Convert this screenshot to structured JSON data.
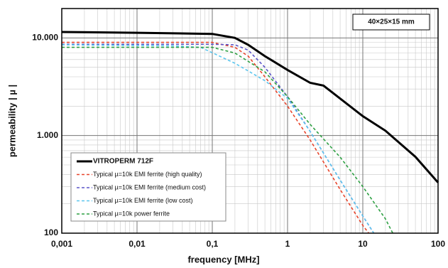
{
  "chart_data": {
    "type": "line",
    "xlabel": "frequency [MHz]",
    "ylabel": "permeability | µ |",
    "annotation": "40×25×15 mm",
    "xscale": "log",
    "yscale": "log",
    "xlim": [
      0.001,
      100
    ],
    "ylim": [
      100,
      20000
    ],
    "xticks": [
      {
        "value": 0.001,
        "label": "0,001"
      },
      {
        "value": 0.01,
        "label": "0,01"
      },
      {
        "value": 0.1,
        "label": "0,1"
      },
      1,
      10,
      100
    ],
    "yticks": [
      100,
      {
        "value": 1000,
        "label": "1.000"
      },
      {
        "value": 10000,
        "label": "10.000"
      }
    ],
    "grid": true,
    "minor_grid": true,
    "legend": "lower left",
    "series": [
      {
        "name": "VITROPERM 712F",
        "color": "#000000",
        "style": "solid",
        "x": [
          0.001,
          0.01,
          0.1,
          0.2,
          0.3,
          0.5,
          1,
          2,
          3,
          10,
          20,
          50,
          100
        ],
        "values": [
          11500,
          11300,
          11000,
          10000,
          8500,
          6500,
          4700,
          3470,
          3250,
          1580,
          1120,
          605,
          330
        ]
      },
      {
        "name": "Typical µ=10k EMI ferrite (high quality)",
        "color": "#e8452c",
        "style": "dashed",
        "x": [
          0.001,
          0.01,
          0.1,
          0.2,
          0.3,
          0.5,
          1,
          2,
          5,
          10,
          12
        ],
        "values": [
          9000,
          9000,
          9000,
          8000,
          6500,
          4000,
          2000,
          900,
          280,
          120,
          100
        ]
      },
      {
        "name": "Typical µ=10k EMI ferrite (medium cost)",
        "color": "#5b55c8",
        "style": "dashed",
        "x": [
          0.001,
          0.01,
          0.1,
          0.2,
          0.3,
          0.5,
          1,
          2,
          5,
          10,
          14
        ],
        "values": [
          8600,
          8600,
          8600,
          8500,
          7500,
          5000,
          2500,
          1100,
          350,
          150,
          100
        ]
      },
      {
        "name": "Typical µ=10k EMI ferrite (low cost)",
        "color": "#5cc6ee",
        "style": "dashed",
        "x": [
          0.001,
          0.03,
          0.07,
          0.2,
          0.5,
          1,
          2,
          5,
          10,
          14
        ],
        "values": [
          8500,
          8300,
          8000,
          5500,
          3650,
          2400,
          1100,
          350,
          150,
          100
        ]
      },
      {
        "name": "Typical µ=10k power ferrite",
        "color": "#2ea043",
        "style": "dashed",
        "x": [
          0.001,
          0.01,
          0.1,
          0.2,
          0.5,
          1,
          2,
          5,
          10,
          20,
          25
        ],
        "values": [
          8000,
          8000,
          8000,
          7000,
          4500,
          2500,
          1300,
          600,
          300,
          140,
          100
        ]
      }
    ]
  }
}
